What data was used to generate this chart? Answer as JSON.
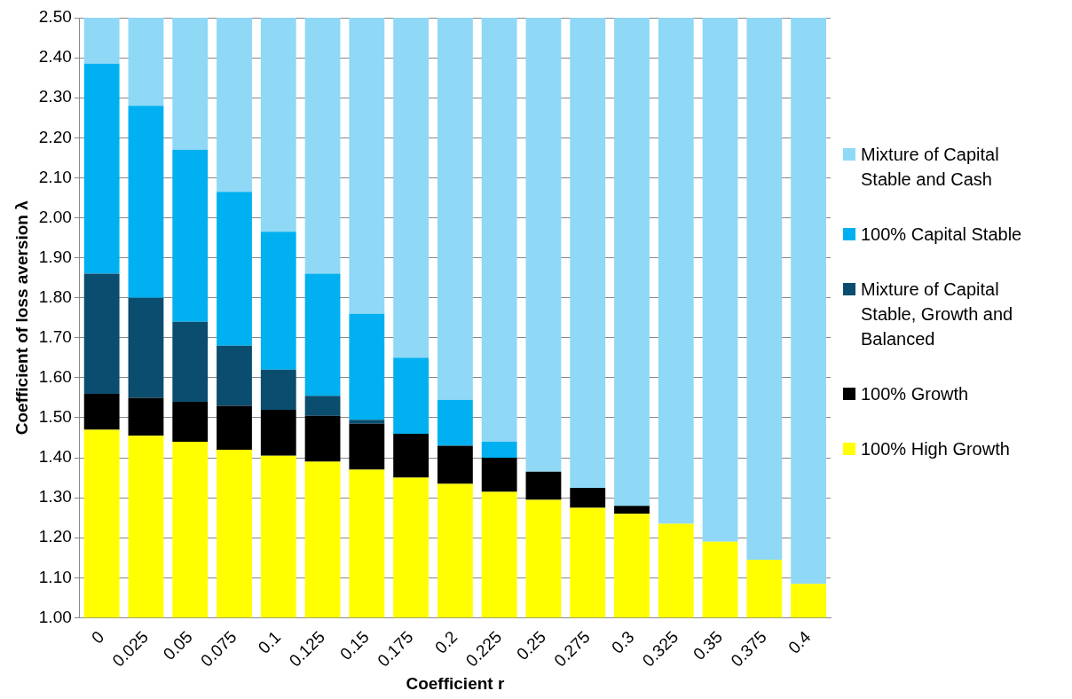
{
  "chart_data": {
    "type": "bar",
    "xlabel": "Coefficient r",
    "ylabel": "Coefficient of loss aversion λ",
    "categories": [
      "0",
      "0.025",
      "0.05",
      "0.075",
      "0.1",
      "0.125",
      "0.15",
      "0.175",
      "0.2",
      "0.225",
      "0.25",
      "0.275",
      "0.3",
      "0.325",
      "0.35",
      "0.375",
      "0.4"
    ],
    "series": [
      {
        "name": "100% High Growth",
        "color": "#ffff00",
        "base": [
          1,
          1,
          1,
          1,
          1,
          1,
          1,
          1,
          1,
          1,
          1,
          1,
          1,
          1,
          1,
          1,
          1
        ],
        "values": [
          0.47,
          0.455,
          0.44,
          0.42,
          0.405,
          0.39,
          0.37,
          0.35,
          0.335,
          0.315,
          0.295,
          0.275,
          0.26,
          0.235,
          0.19,
          0.145,
          0.085
        ]
      },
      {
        "name": "100% Growth",
        "color": "#000000",
        "base": [
          1.47,
          1.455,
          1.44,
          1.42,
          1.405,
          1.39,
          1.37,
          1.35,
          1.335,
          1.315,
          1.295,
          1.275,
          1.26,
          null,
          null,
          null,
          null
        ],
        "values": [
          0.09,
          0.095,
          0.1,
          0.11,
          0.115,
          0.115,
          0.115,
          0.11,
          0.095,
          0.085,
          0.07,
          0.05,
          0.02,
          null,
          null,
          null,
          null
        ]
      },
      {
        "name": "Mixture of Capital Stable, Growth and Balanced",
        "color": "#0a4d6e",
        "base": [
          1.56,
          1.55,
          1.54,
          1.53,
          1.52,
          1.505,
          1.485,
          null,
          null,
          null,
          null,
          null,
          null,
          null,
          null,
          null,
          null
        ],
        "values": [
          0.3,
          0.25,
          0.2,
          0.15,
          0.1,
          0.05,
          0.01,
          null,
          null,
          null,
          null,
          null,
          null,
          null,
          null,
          null,
          null
        ]
      },
      {
        "name": "100% Capital Stable",
        "color": "#00b0f0",
        "base": [
          1.86,
          1.8,
          1.74,
          1.68,
          1.62,
          1.555,
          1.495,
          1.46,
          1.43,
          1.4,
          null,
          null,
          null,
          null,
          null,
          null,
          null
        ],
        "values": [
          0.525,
          0.48,
          0.43,
          0.385,
          0.345,
          0.305,
          0.265,
          0.19,
          0.115,
          0.04,
          null,
          null,
          null,
          null,
          null,
          null,
          null
        ]
      },
      {
        "name": "Mixture of Capital Stable and Cash",
        "color": "#8fd8f6",
        "base": [
          2.385,
          2.28,
          2.17,
          2.065,
          1.965,
          1.86,
          1.76,
          1.65,
          1.545,
          1.44,
          1.365,
          1.325,
          1.28,
          1.235,
          1.19,
          1.145,
          1.085
        ],
        "values": [
          0.115,
          0.22,
          0.33,
          0.435,
          0.535,
          0.64,
          0.74,
          0.85,
          0.955,
          1.06,
          1.135,
          1.175,
          1.22,
          1.265,
          1.31,
          1.355,
          1.415
        ]
      }
    ],
    "ylim": [
      1,
      2.5
    ],
    "yticks": [
      {
        "value": 1,
        "label": "1.00"
      },
      {
        "value": 1.1,
        "label": "1.10"
      },
      {
        "value": 1.2,
        "label": "1.20"
      },
      {
        "value": 1.3,
        "label": "1.30"
      },
      {
        "value": 1.4,
        "label": "1.40"
      },
      {
        "value": 1.5,
        "label": "1.50"
      },
      {
        "value": 1.6,
        "label": "1.60"
      },
      {
        "value": 1.7,
        "label": "1.70"
      },
      {
        "value": 1.8,
        "label": "1.80"
      },
      {
        "value": 1.9,
        "label": "1.90"
      },
      {
        "value": 2,
        "label": "2.00"
      },
      {
        "value": 2.1,
        "label": "2.10"
      },
      {
        "value": 2.2,
        "label": "2.20"
      },
      {
        "value": 2.3,
        "label": "2.30"
      },
      {
        "value": 2.4,
        "label": "2.40"
      },
      {
        "value": 2.5,
        "label": "2.50"
      }
    ],
    "grid": "y",
    "legend": "right"
  }
}
